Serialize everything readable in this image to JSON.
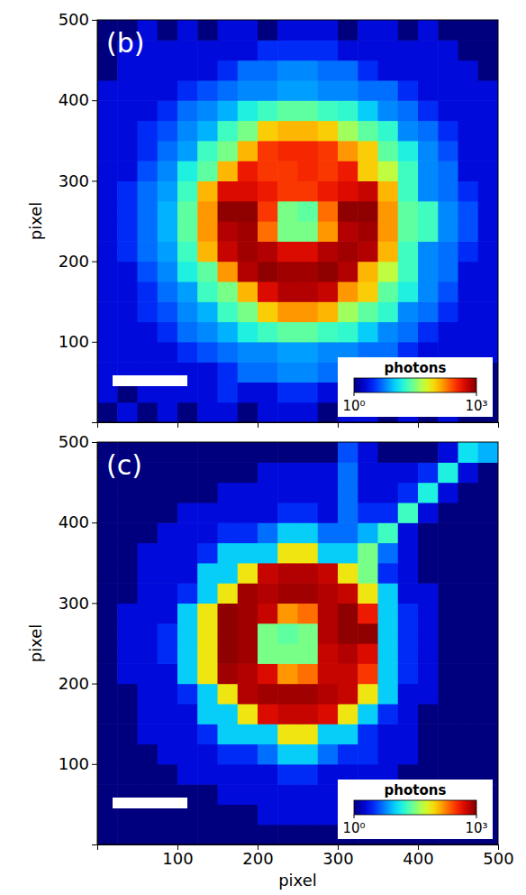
{
  "chart_data": [
    {
      "type": "heatmap",
      "title": "(b)",
      "ylabel": "pixel",
      "xlim": [
        0,
        500
      ],
      "ylim": [
        0,
        500
      ],
      "xticks": [
        100,
        200,
        300,
        400,
        500
      ],
      "yticks": [
        100,
        200,
        300,
        400,
        500
      ],
      "tick_labels": "y",
      "log": true,
      "xbins": [
        0,
        25,
        50,
        75,
        100,
        125,
        150,
        175,
        200,
        225,
        250,
        275,
        300,
        325,
        350,
        375,
        400,
        425,
        450,
        475,
        500
      ],
      "ybins": [
        0,
        25,
        50,
        75,
        100,
        125,
        150,
        175,
        200,
        225,
        250,
        275,
        300,
        325,
        350,
        375,
        400,
        425,
        450,
        475,
        500
      ],
      "cells": [
        [
          1,
          2,
          1,
          2,
          1,
          2,
          2,
          1,
          2,
          2,
          2,
          1,
          2,
          2,
          1,
          2,
          1,
          2,
          1,
          1
        ],
        [
          2,
          1,
          2,
          2,
          2,
          2,
          3,
          2,
          2,
          3,
          3,
          2,
          2,
          2,
          3,
          2,
          2,
          1,
          2,
          1
        ],
        [
          2,
          2,
          2,
          2,
          2,
          2,
          3,
          5,
          5,
          6,
          6,
          5,
          5,
          3,
          2,
          2,
          2,
          2,
          2,
          1
        ],
        [
          2,
          2,
          2,
          2,
          3,
          4,
          5,
          6,
          6,
          7,
          7,
          6,
          6,
          5,
          5,
          3,
          2,
          2,
          2,
          2
        ],
        [
          2,
          2,
          2,
          3,
          5,
          6,
          8,
          15,
          20,
          25,
          25,
          20,
          18,
          10,
          6,
          5,
          3,
          2,
          2,
          2
        ],
        [
          2,
          2,
          3,
          4,
          6,
          8,
          20,
          30,
          100,
          150,
          150,
          120,
          40,
          25,
          18,
          6,
          5,
          3,
          2,
          2
        ],
        [
          2,
          2,
          3,
          5,
          7,
          20,
          30,
          120,
          500,
          700,
          700,
          600,
          150,
          100,
          25,
          15,
          6,
          4,
          2,
          2
        ],
        [
          2,
          2,
          4,
          6,
          15,
          25,
          150,
          700,
          900,
          800,
          800,
          900,
          700,
          120,
          50,
          20,
          6,
          5,
          2,
          2
        ],
        [
          2,
          3,
          5,
          7,
          20,
          120,
          600,
          800,
          700,
          500,
          500,
          700,
          800,
          700,
          120,
          20,
          6,
          5,
          3,
          2
        ],
        [
          2,
          3,
          5,
          8,
          25,
          150,
          700,
          800,
          200,
          30,
          30,
          150,
          700,
          800,
          150,
          25,
          20,
          6,
          4,
          2
        ],
        [
          2,
          3,
          5,
          8,
          25,
          150,
          900,
          900,
          300,
          30,
          25,
          200,
          900,
          900,
          150,
          25,
          20,
          6,
          4,
          2
        ],
        [
          2,
          3,
          5,
          7,
          20,
          120,
          500,
          500,
          400,
          300,
          300,
          400,
          500,
          600,
          120,
          20,
          6,
          5,
          3,
          2
        ],
        [
          2,
          2,
          4,
          6,
          15,
          25,
          120,
          400,
          300,
          300,
          350,
          300,
          400,
          100,
          50,
          20,
          6,
          5,
          2,
          2
        ],
        [
          2,
          2,
          3,
          5,
          7,
          20,
          30,
          120,
          300,
          350,
          350,
          300,
          150,
          100,
          25,
          15,
          6,
          4,
          2,
          2
        ],
        [
          2,
          2,
          3,
          4,
          6,
          8,
          20,
          30,
          100,
          120,
          120,
          100,
          40,
          25,
          18,
          6,
          5,
          3,
          2,
          2
        ],
        [
          2,
          2,
          2,
          3,
          5,
          6,
          8,
          15,
          20,
          25,
          25,
          20,
          18,
          10,
          6,
          5,
          3,
          2,
          2,
          2
        ],
        [
          2,
          2,
          2,
          2,
          3,
          4,
          5,
          6,
          6,
          7,
          7,
          6,
          6,
          5,
          5,
          3,
          2,
          2,
          2,
          2
        ],
        [
          1,
          2,
          2,
          2,
          2,
          2,
          3,
          5,
          5,
          6,
          6,
          5,
          5,
          3,
          2,
          2,
          2,
          2,
          2,
          1
        ],
        [
          1,
          2,
          2,
          2,
          2,
          2,
          2,
          2,
          3,
          3,
          3,
          3,
          2,
          2,
          2,
          2,
          2,
          2,
          1,
          1
        ],
        [
          1,
          1,
          2,
          1,
          2,
          1,
          2,
          2,
          1,
          2,
          2,
          2,
          1,
          2,
          2,
          1,
          2,
          1,
          1,
          1
        ]
      ],
      "colorbar": {
        "label": "photons",
        "range": [
          1,
          1000
        ],
        "ticks": [
          {
            "value": 1,
            "label": "10⁰"
          },
          {
            "value": 1000,
            "label": "10³"
          }
        ]
      }
    },
    {
      "type": "heatmap",
      "title": "(c)",
      "xlabel": "pixel",
      "ylabel": "pixel",
      "xlim": [
        0,
        500
      ],
      "ylim": [
        0,
        500
      ],
      "xticks": [
        100,
        200,
        300,
        400,
        500
      ],
      "yticks": [
        100,
        200,
        300,
        400,
        500
      ],
      "log": true,
      "xbins": [
        0,
        25,
        50,
        75,
        100,
        125,
        150,
        175,
        200,
        225,
        250,
        275,
        300,
        325,
        350,
        375,
        400,
        425,
        450,
        475,
        500
      ],
      "ybins": [
        0,
        25,
        50,
        75,
        100,
        125,
        150,
        175,
        200,
        225,
        250,
        275,
        300,
        325,
        350,
        375,
        400,
        425,
        450,
        475,
        500
      ],
      "cells": [
        [
          1,
          1,
          1,
          1,
          1,
          1,
          1,
          1,
          1,
          1,
          1,
          1,
          1,
          1,
          1,
          1,
          1,
          1,
          1,
          1
        ],
        [
          1,
          1,
          1,
          1,
          1,
          1,
          1,
          1,
          2,
          2,
          2,
          2,
          1,
          1,
          1,
          1,
          1,
          1,
          1,
          1
        ],
        [
          1,
          1,
          1,
          1,
          1,
          1,
          2,
          2,
          2,
          2,
          2,
          2,
          2,
          2,
          1,
          1,
          1,
          1,
          1,
          1
        ],
        [
          1,
          1,
          1,
          1,
          2,
          2,
          2,
          2,
          2,
          3,
          3,
          2,
          2,
          2,
          2,
          1,
          1,
          1,
          1,
          1
        ],
        [
          1,
          1,
          1,
          2,
          2,
          2,
          3,
          3,
          5,
          10,
          10,
          5,
          3,
          3,
          2,
          2,
          1,
          1,
          1,
          1
        ],
        [
          1,
          1,
          2,
          2,
          2,
          3,
          10,
          10,
          10,
          80,
          80,
          10,
          10,
          3,
          2,
          2,
          1,
          1,
          1,
          1
        ],
        [
          1,
          1,
          2,
          2,
          2,
          10,
          10,
          80,
          500,
          600,
          600,
          500,
          80,
          10,
          3,
          2,
          1,
          1,
          1,
          1
        ],
        [
          1,
          1,
          2,
          2,
          3,
          10,
          80,
          700,
          800,
          800,
          800,
          700,
          600,
          80,
          10,
          2,
          2,
          1,
          1,
          1
        ],
        [
          1,
          2,
          2,
          2,
          10,
          80,
          800,
          700,
          500,
          150,
          200,
          600,
          600,
          300,
          10,
          3,
          2,
          1,
          1,
          1
        ],
        [
          1,
          2,
          2,
          3,
          10,
          80,
          900,
          800,
          30,
          30,
          30,
          600,
          700,
          500,
          10,
          3,
          2,
          1,
          1,
          1
        ],
        [
          1,
          2,
          2,
          3,
          10,
          80,
          900,
          800,
          30,
          25,
          30,
          700,
          900,
          900,
          10,
          3,
          2,
          1,
          1,
          1
        ],
        [
          1,
          2,
          2,
          2,
          10,
          80,
          900,
          800,
          600,
          150,
          200,
          700,
          900,
          400,
          10,
          3,
          2,
          1,
          1,
          1
        ],
        [
          1,
          1,
          2,
          2,
          3,
          10,
          80,
          800,
          700,
          800,
          800,
          700,
          600,
          80,
          10,
          2,
          2,
          1,
          1,
          1
        ],
        [
          1,
          1,
          2,
          2,
          2,
          10,
          10,
          80,
          600,
          700,
          700,
          600,
          80,
          30,
          3,
          2,
          1,
          1,
          1,
          1
        ],
        [
          1,
          1,
          2,
          2,
          2,
          3,
          10,
          10,
          10,
          80,
          80,
          10,
          10,
          30,
          5,
          2,
          1,
          1,
          1,
          1
        ],
        [
          1,
          1,
          1,
          2,
          2,
          2,
          3,
          3,
          5,
          10,
          10,
          5,
          5,
          8,
          20,
          2,
          1,
          1,
          1,
          1
        ],
        [
          1,
          1,
          1,
          1,
          2,
          2,
          2,
          2,
          2,
          3,
          3,
          2,
          5,
          3,
          3,
          20,
          2,
          1,
          1,
          1
        ],
        [
          1,
          1,
          1,
          1,
          1,
          1,
          2,
          2,
          2,
          2,
          2,
          2,
          5,
          2,
          2,
          3,
          15,
          2,
          1,
          1
        ],
        [
          1,
          1,
          1,
          1,
          1,
          1,
          1,
          1,
          2,
          2,
          2,
          2,
          5,
          2,
          2,
          2,
          3,
          15,
          2,
          1
        ],
        [
          1,
          1,
          1,
          1,
          1,
          1,
          1,
          1,
          1,
          1,
          1,
          1,
          4,
          2,
          1,
          1,
          1,
          2,
          12,
          8
        ]
      ],
      "colorbar": {
        "label": "photons",
        "range": [
          1,
          1000
        ],
        "ticks": [
          {
            "value": 1,
            "label": "10⁰"
          },
          {
            "value": 1000,
            "label": "10³"
          }
        ]
      }
    }
  ]
}
